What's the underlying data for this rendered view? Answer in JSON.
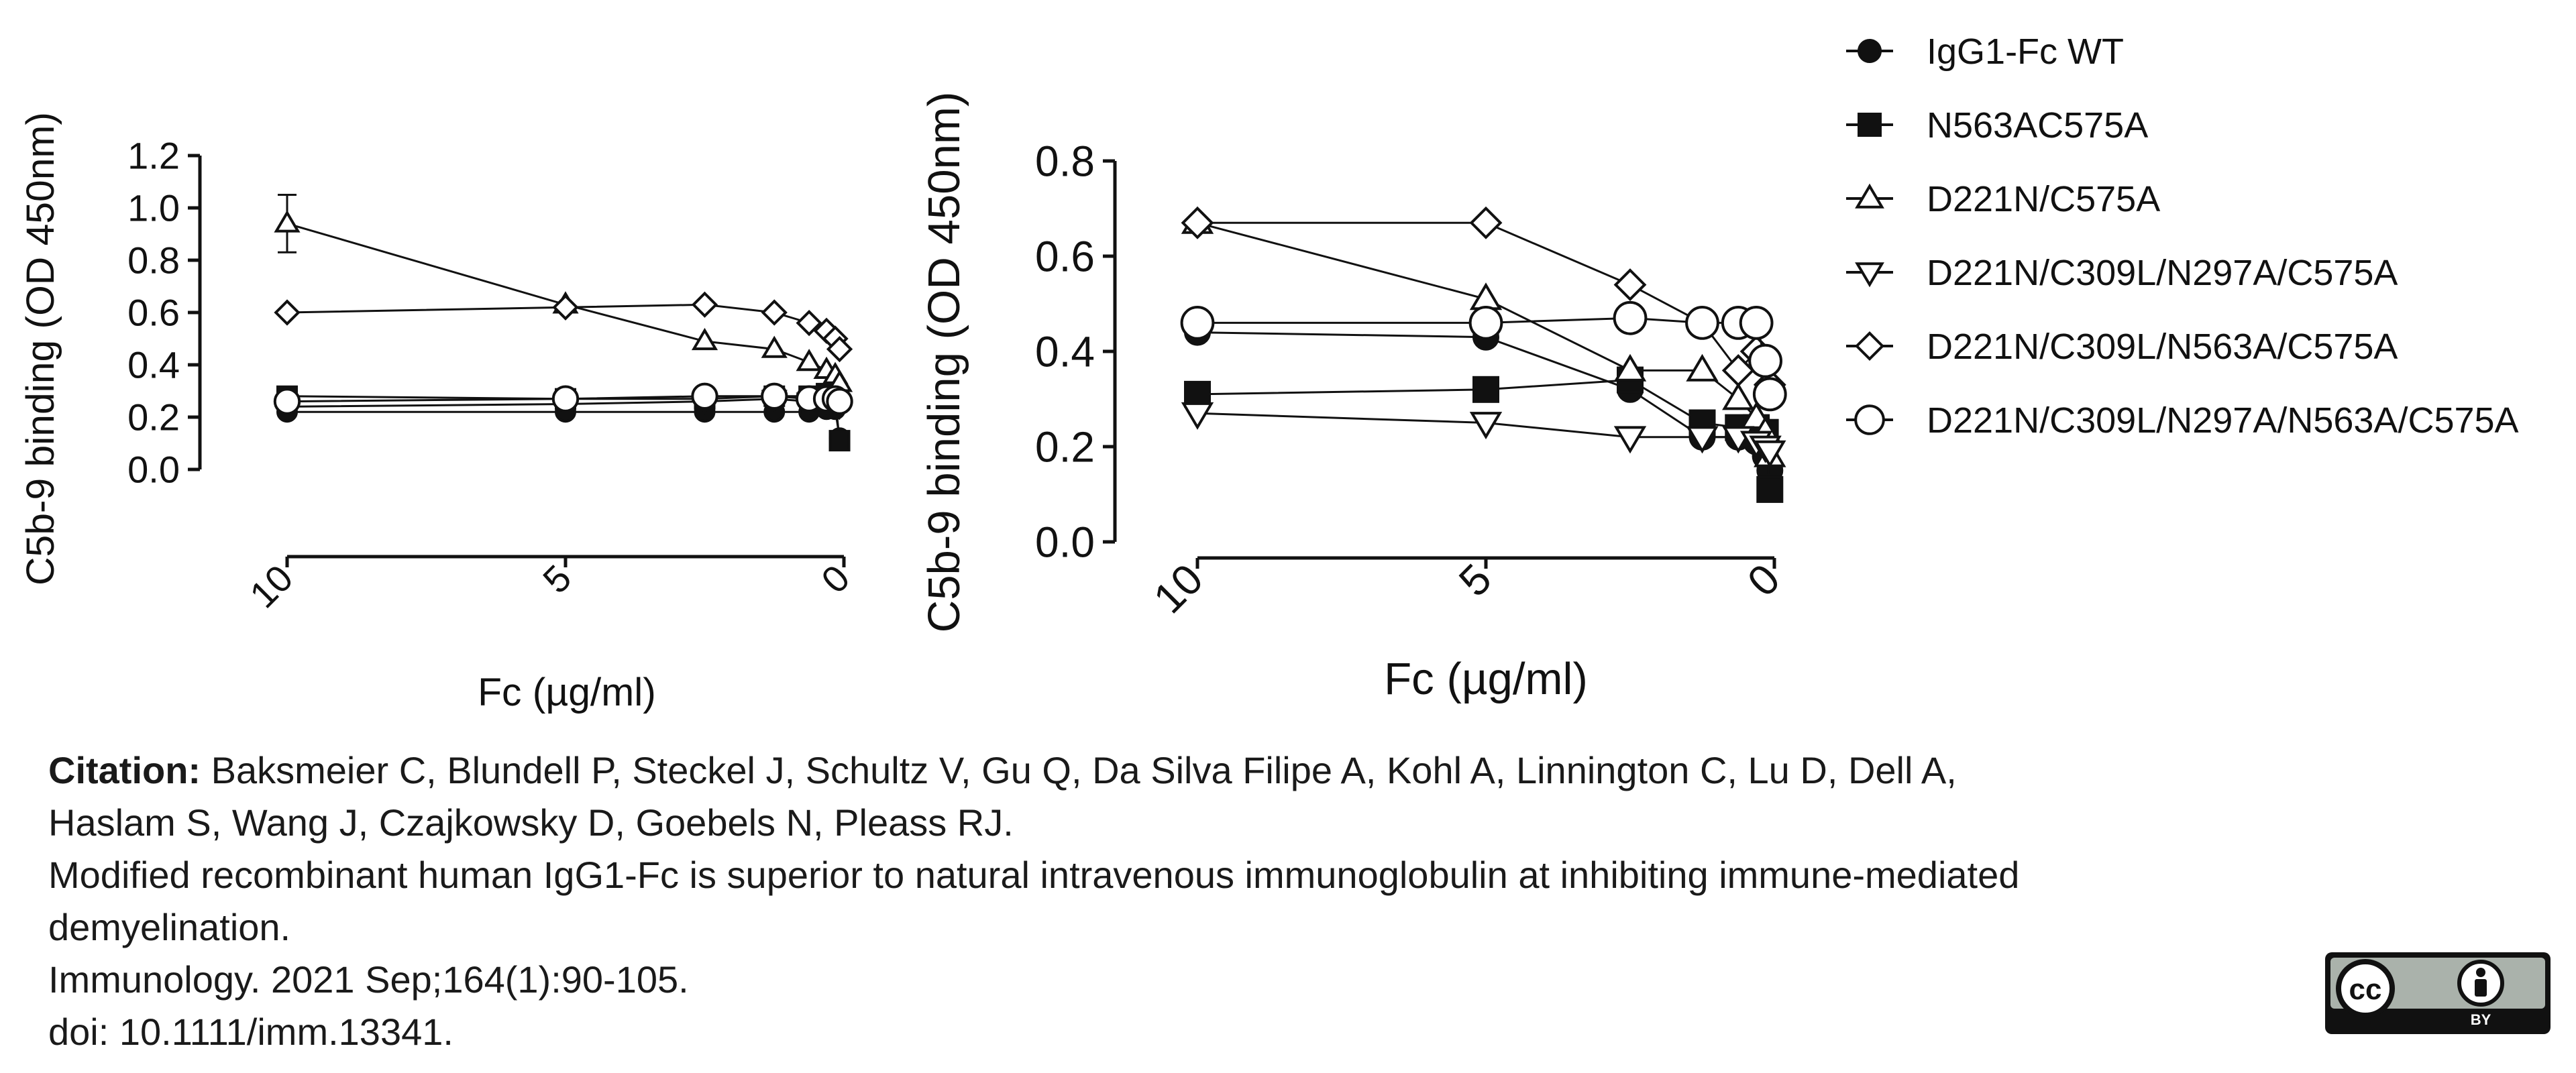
{
  "series_style": [
    {
      "name": "IgG1-Fc WT",
      "marker": "circle",
      "fill": "#111111",
      "size": 1.0
    },
    {
      "name": "N563AC575A",
      "marker": "square",
      "fill": "#111111",
      "size": 1.0
    },
    {
      "name": "D221N/C575A",
      "marker": "triangle-up",
      "fill": "#ffffff",
      "size": 1.0
    },
    {
      "name": "D221N/C309L/N297A/C575A",
      "marker": "triangle-down",
      "fill": "#ffffff",
      "size": 1.0
    },
    {
      "name": "D221N/C309L/N563A/C575A",
      "marker": "diamond",
      "fill": "#ffffff",
      "size": 1.0
    },
    {
      "name": "D221N/C309L/N297A/N563A/C575A",
      "marker": "circle",
      "fill": "#ffffff",
      "size": 1.3
    }
  ],
  "chart_data": [
    {
      "type": "scatter",
      "xlabel": "Fc (µg/ml)",
      "ylabel": "C5b-9 binding (OD 450nm)",
      "x_ticks": [
        10,
        5,
        0
      ],
      "y_ticks": [
        "0.0",
        "0.2",
        "0.4",
        "0.6",
        "0.8",
        "1.0",
        "1.2"
      ],
      "xlim": [
        10,
        0
      ],
      "ylim": [
        0,
        1.2
      ],
      "x_reversed": true,
      "series": [
        {
          "name": "IgG1-Fc WT",
          "x": [
            10,
            5,
            2.5,
            1.25,
            0.625,
            0.3125,
            0.156,
            0.078
          ],
          "y": [
            0.22,
            0.22,
            0.22,
            0.22,
            0.22,
            0.23,
            0.23,
            0.12
          ]
        },
        {
          "name": "N563AC575A",
          "x": [
            10,
            5,
            2.5,
            1.25,
            0.625,
            0.3125,
            0.156,
            0.078
          ],
          "y": [
            0.28,
            0.27,
            0.27,
            0.28,
            0.28,
            0.29,
            0.27,
            0.11
          ]
        },
        {
          "name": "D221N/C575A",
          "x": [
            10,
            5,
            2.5,
            1.25,
            0.625,
            0.3125,
            0.156,
            0.078
          ],
          "y": [
            0.94,
            0.63,
            0.49,
            0.46,
            0.41,
            0.38,
            0.36,
            0.33
          ],
          "err": [
            0.11,
            0,
            0,
            0,
            0,
            0,
            0,
            0
          ]
        },
        {
          "name": "D221N/C309L/N297A/C575A",
          "x": [
            10,
            5,
            2.5,
            1.25,
            0.625,
            0.3125,
            0.156,
            0.078
          ],
          "y": [
            0.24,
            0.25,
            0.26,
            0.27,
            0.26,
            0.26,
            0.25,
            0.24
          ]
        },
        {
          "name": "D221N/C309L/N563A/C575A",
          "x": [
            10,
            5,
            2.5,
            1.25,
            0.625,
            0.3125,
            0.156,
            0.078
          ],
          "y": [
            0.6,
            0.62,
            0.63,
            0.6,
            0.56,
            0.53,
            0.5,
            0.46
          ]
        },
        {
          "name": "D221N/C309L/N297A/N563A/C575A",
          "x": [
            10,
            5,
            2.5,
            1.25,
            0.625,
            0.3125,
            0.156,
            0.078
          ],
          "y": [
            0.26,
            0.27,
            0.28,
            0.28,
            0.27,
            0.27,
            0.27,
            0.26
          ]
        }
      ]
    },
    {
      "type": "scatter",
      "xlabel": "Fc (µg/ml)",
      "ylabel": "C5b-9 binding (OD 450nm)",
      "x_ticks": [
        10,
        5,
        0
      ],
      "y_ticks": [
        "0.0",
        "0.2",
        "0.4",
        "0.6",
        "0.8"
      ],
      "xlim": [
        10,
        0
      ],
      "ylim": [
        0,
        0.8
      ],
      "x_reversed": true,
      "legend_position": "right",
      "series": [
        {
          "name": "IgG1-Fc WT",
          "x": [
            10,
            5,
            2.5,
            1.25,
            0.625,
            0.3125,
            0.156,
            0.078
          ],
          "y": [
            0.44,
            0.43,
            0.32,
            0.22,
            0.22,
            0.21,
            0.18,
            0.15
          ]
        },
        {
          "name": "N563AC575A",
          "x": [
            10,
            5,
            2.5,
            1.25,
            0.625,
            0.3125,
            0.156,
            0.078
          ],
          "y": [
            0.31,
            0.32,
            0.34,
            0.25,
            0.24,
            0.24,
            0.23,
            0.11
          ]
        },
        {
          "name": "D221N/C575A",
          "x": [
            10,
            5,
            2.5,
            1.25,
            0.625,
            0.3125,
            0.156,
            0.078
          ],
          "y": [
            0.67,
            0.51,
            0.36,
            0.36,
            0.3,
            0.26,
            0.23,
            0.18
          ]
        },
        {
          "name": "D221N/C309L/N297A/C575A",
          "x": [
            10,
            5,
            2.5,
            1.25,
            0.625,
            0.3125,
            0.156,
            0.078
          ],
          "y": [
            0.27,
            0.25,
            0.22,
            0.22,
            0.22,
            0.21,
            0.2,
            0.19
          ]
        },
        {
          "name": "D221N/C309L/N563A/C575A",
          "x": [
            10,
            5,
            2.5,
            1.25,
            0.625,
            0.3125,
            0.156,
            0.078
          ],
          "y": [
            0.67,
            0.67,
            0.54,
            0.46,
            0.36,
            0.4,
            0.37,
            0.33
          ]
        },
        {
          "name": "D221N/C309L/N297A/N563A/C575A",
          "x": [
            10,
            5,
            2.5,
            1.25,
            0.625,
            0.3125,
            0.156,
            0.078
          ],
          "y": [
            0.46,
            0.46,
            0.47,
            0.46,
            0.46,
            0.46,
            0.38,
            0.31
          ]
        }
      ]
    }
  ],
  "citation": {
    "label": "Citation:",
    "authors": "Baksmeier C, Blundell P, Steckel J, Schultz V, Gu Q, Da Silva Filipe A, Kohl A, Linnington C, Lu D, Dell A,",
    "authors2": "Haslam S, Wang J, Czajkowsky D, Goebels N, Pleass RJ.",
    "title": "Modified recombinant human IgG1-Fc is superior to natural intravenous immunoglobulin at inhibiting immune-mediated",
    "title2": "demyelination.",
    "journal": "Immunology. 2021 Sep;164(1):90-105.",
    "doi": "doi: 10.1111/imm.13341."
  },
  "license_badge": {
    "cc": "cc",
    "by": "BY"
  }
}
